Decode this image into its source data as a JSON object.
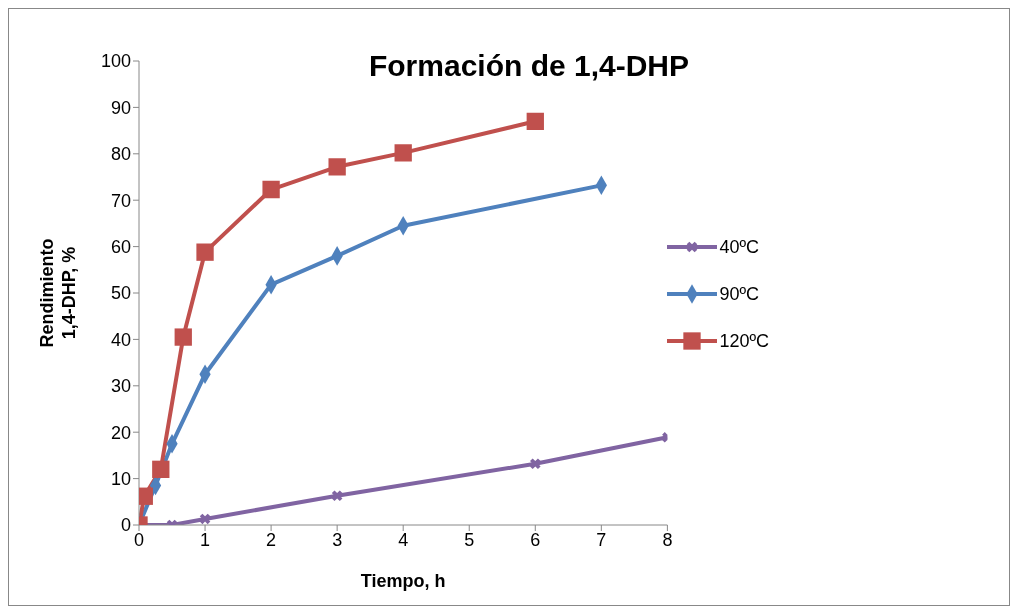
{
  "chart_data": {
    "type": "line",
    "title": "Formación de 1,4-DHP",
    "xlabel": "Tiempo, h",
    "ylabel": "Rendimiento 1,4-DHP, %",
    "xlim": [
      0,
      8
    ],
    "xticks": [
      0,
      1,
      2,
      3,
      4,
      5,
      6,
      7,
      8
    ],
    "ylim": [
      0,
      100
    ],
    "yticks": [
      0,
      10,
      20,
      30,
      40,
      50,
      60,
      70,
      80,
      90,
      100
    ],
    "grid": false,
    "legend": "right",
    "line_style": "solid",
    "series": [
      {
        "name": "40ºC",
        "color": "#8064a2",
        "marker": "cross",
        "x": [
          0,
          0.5,
          1,
          3,
          6,
          8
        ],
        "values": [
          0,
          0,
          1.3,
          6.3,
          13.2,
          18.9
        ]
      },
      {
        "name": "90ºC",
        "color": "#4f81bd",
        "marker": "diamond",
        "x": [
          0,
          0.25,
          0.5,
          1,
          2,
          3,
          4,
          7
        ],
        "values": [
          0,
          8.5,
          17.5,
          32.5,
          51.8,
          58,
          64.5,
          73.2
        ]
      },
      {
        "name": "120ºC",
        "color": "#c0504d",
        "marker": "square",
        "x": [
          0,
          0.08,
          0.33,
          0.67,
          1,
          2,
          3,
          4,
          6
        ],
        "values": [
          0,
          6.2,
          12,
          40.5,
          58.8,
          72.3,
          77.2,
          80.2,
          87
        ]
      }
    ]
  }
}
